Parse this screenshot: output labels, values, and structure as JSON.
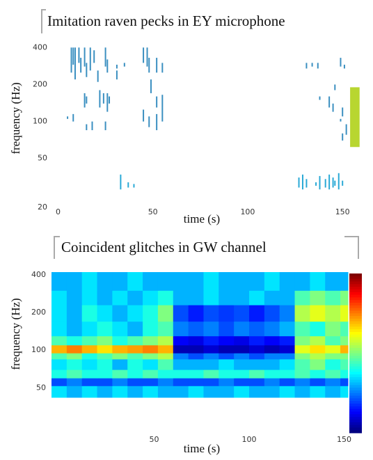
{
  "chart_data": [
    {
      "type": "segments",
      "title": "Imitation raven pecks in EY microphone",
      "xlabel": "time (s)",
      "ylabel": "frequency (Hz)",
      "xlim": [
        -2,
        158
      ],
      "ylim": [
        20,
        440
      ],
      "yscale": "log",
      "xticks": [
        0,
        50,
        100,
        150
      ],
      "yticks": [
        400,
        200,
        100,
        50,
        20
      ],
      "series": [
        {
          "color": "#3a8fc0",
          "x": [
            7,
            8,
            9,
            11,
            12,
            14,
            15,
            17,
            19,
            21,
            25,
            26,
            31,
            14,
            15,
            22,
            24,
            26,
            27,
            5,
            8,
            15,
            18,
            25,
            45,
            47,
            48,
            49,
            52,
            55,
            52,
            55,
            45,
            48,
            52,
            55,
            31,
            35,
            131,
            134,
            137,
            149,
            151,
            138,
            143,
            145,
            150,
            149,
            152,
            150,
            146
          ],
          "low": [
            250,
            290,
            220,
            300,
            250,
            280,
            230,
            260,
            300,
            210,
            280,
            250,
            220,
            130,
            140,
            130,
            140,
            120,
            140,
            105,
            100,
            85,
            85,
            85,
            300,
            280,
            250,
            170,
            250,
            250,
            130,
            130,
            100,
            90,
            85,
            100,
            270,
            280,
            270,
            280,
            270,
            280,
            270,
            150,
            130,
            120,
            110,
            100,
            78,
            70,
            180
          ],
          "high": [
            400,
            400,
            400,
            400,
            330,
            400,
            300,
            400,
            380,
            260,
            400,
            320,
            260,
            170,
            160,
            180,
            170,
            170,
            160,
            110,
            115,
            95,
            100,
            100,
            400,
            400,
            330,
            220,
            330,
            300,
            160,
            165,
            125,
            110,
            115,
            130,
            290,
            300,
            300,
            300,
            300,
            330,
            290,
            160,
            160,
            140,
            130,
            105,
            95,
            80,
            200
          ]
        },
        {
          "color": "#29a9d6",
          "x": [
            33,
            37,
            40,
            127,
            129,
            131,
            136,
            138,
            141,
            143,
            145,
            146,
            148,
            150
          ],
          "low": [
            28,
            29,
            29,
            29,
            28,
            29,
            30,
            28,
            29,
            28,
            29,
            30,
            28,
            30
          ],
          "high": [
            37,
            32,
            31,
            35,
            37,
            34,
            32,
            36,
            34,
            37,
            35,
            33,
            38,
            33
          ]
        }
      ],
      "highlight": {
        "x": [
          154,
          159
        ],
        "y": [
          62,
          190
        ],
        "color": "#b8d630"
      }
    },
    {
      "type": "heatmap",
      "title": "Coincident glitches in GW channel",
      "xlabel": "time (s)",
      "ylabel": "frequency (Hz)",
      "xlim": [
        -4,
        152
      ],
      "ylim": [
        42,
        420
      ],
      "yscale": "log",
      "clim": [
        0,
        1
      ],
      "xticks": [
        50,
        100,
        150
      ],
      "yticks": [
        400,
        200,
        100,
        50
      ],
      "xbins": [
        -4,
        4,
        12,
        20,
        28,
        36,
        44,
        52,
        60,
        68,
        76,
        84,
        92,
        100,
        108,
        116,
        124,
        132,
        140,
        148,
        152
      ],
      "ybins": [
        42,
        52,
        60,
        70,
        85,
        95,
        110,
        130,
        170,
        230,
        300,
        420
      ],
      "z": [
        [
          0.35,
          0.3,
          0.35,
          0.3,
          0.35,
          0.3,
          0.35,
          0.3,
          0.3,
          0.35,
          0.3,
          0.3,
          0.35,
          0.3,
          0.3,
          0.35,
          0.3,
          0.35,
          0.3,
          0.35
        ],
        [
          0.2,
          0.25,
          0.2,
          0.2,
          0.25,
          0.2,
          0.2,
          0.25,
          0.2,
          0.2,
          0.2,
          0.25,
          0.2,
          0.2,
          0.25,
          0.2,
          0.25,
          0.2,
          0.25,
          0.2
        ],
        [
          0.4,
          0.45,
          0.4,
          0.4,
          0.45,
          0.4,
          0.45,
          0.4,
          0.4,
          0.4,
          0.45,
          0.4,
          0.4,
          0.45,
          0.4,
          0.4,
          0.45,
          0.4,
          0.45,
          0.4
        ],
        [
          0.35,
          0.4,
          0.35,
          0.4,
          0.3,
          0.4,
          0.35,
          0.45,
          0.3,
          0.3,
          0.3,
          0.35,
          0.3,
          0.3,
          0.3,
          0.35,
          0.45,
          0.5,
          0.4,
          0.45
        ],
        [
          0.45,
          0.5,
          0.4,
          0.45,
          0.5,
          0.45,
          0.5,
          0.55,
          0.25,
          0.2,
          0.25,
          0.2,
          0.25,
          0.2,
          0.25,
          0.25,
          0.5,
          0.55,
          0.5,
          0.5
        ],
        [
          0.7,
          0.75,
          0.7,
          0.65,
          0.7,
          0.72,
          0.75,
          0.7,
          0.05,
          0.05,
          0.08,
          0.05,
          0.05,
          0.08,
          0.05,
          0.08,
          0.6,
          0.65,
          0.6,
          0.7
        ],
        [
          0.45,
          0.4,
          0.45,
          0.5,
          0.4,
          0.45,
          0.5,
          0.55,
          0.12,
          0.1,
          0.15,
          0.12,
          0.1,
          0.15,
          0.12,
          0.15,
          0.5,
          0.55,
          0.45,
          0.5
        ],
        [
          0.35,
          0.3,
          0.35,
          0.4,
          0.35,
          0.3,
          0.4,
          0.45,
          0.25,
          0.22,
          0.25,
          0.2,
          0.25,
          0.22,
          0.25,
          0.3,
          0.45,
          0.4,
          0.5,
          0.45
        ],
        [
          0.35,
          0.3,
          0.4,
          0.35,
          0.3,
          0.35,
          0.4,
          0.5,
          0.2,
          0.15,
          0.2,
          0.18,
          0.2,
          0.15,
          0.2,
          0.25,
          0.55,
          0.6,
          0.55,
          0.6
        ],
        [
          0.35,
          0.3,
          0.35,
          0.3,
          0.35,
          0.3,
          0.35,
          0.4,
          0.3,
          0.3,
          0.35,
          0.3,
          0.3,
          0.35,
          0.3,
          0.3,
          0.45,
          0.5,
          0.45,
          0.5
        ],
        [
          0.3,
          0.3,
          0.35,
          0.3,
          0.3,
          0.35,
          0.3,
          0.3,
          0.3,
          0.3,
          0.35,
          0.3,
          0.3,
          0.3,
          0.35,
          0.3,
          0.3,
          0.35,
          0.3,
          0.3
        ]
      ]
    }
  ]
}
